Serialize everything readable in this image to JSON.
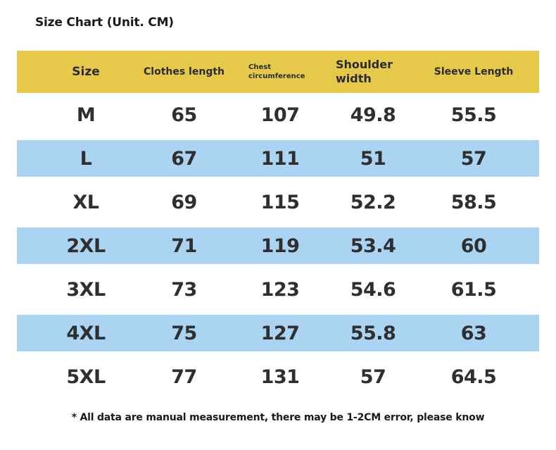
{
  "title": "Size Chart (Unit. CM)",
  "header": {
    "size": "Size",
    "clothes_length": "Clothes length",
    "chest_circumference": "Chest circumference",
    "shoulder_width": "Shoulder width",
    "sleeve_length": "Sleeve Length"
  },
  "rows": [
    {
      "size": "M",
      "clothes_length": "65",
      "chest": "107",
      "shoulder": "49.8",
      "sleeve": "55.5"
    },
    {
      "size": "L",
      "clothes_length": "67",
      "chest": "111",
      "shoulder": "51",
      "sleeve": "57"
    },
    {
      "size": "XL",
      "clothes_length": "69",
      "chest": "115",
      "shoulder": "52.2",
      "sleeve": "58.5"
    },
    {
      "size": "2XL",
      "clothes_length": "71",
      "chest": "119",
      "shoulder": "53.4",
      "sleeve": "60"
    },
    {
      "size": "3XL",
      "clothes_length": "73",
      "chest": "123",
      "shoulder": "54.6",
      "sleeve": "61.5"
    },
    {
      "size": "4XL",
      "clothes_length": "75",
      "chest": "127",
      "shoulder": "55.8",
      "sleeve": "63"
    },
    {
      "size": "5XL",
      "clothes_length": "77",
      "chest": "131",
      "shoulder": "57",
      "sleeve": "64.5"
    }
  ],
  "footnote": "* All data are manual measurement, there may be 1-2CM error, please know",
  "colors": {
    "header_bg": "#e6c94b",
    "alt_row_bg": "#aad4f2",
    "row_bg": "#ffffff",
    "text": "#2f2f2f"
  }
}
